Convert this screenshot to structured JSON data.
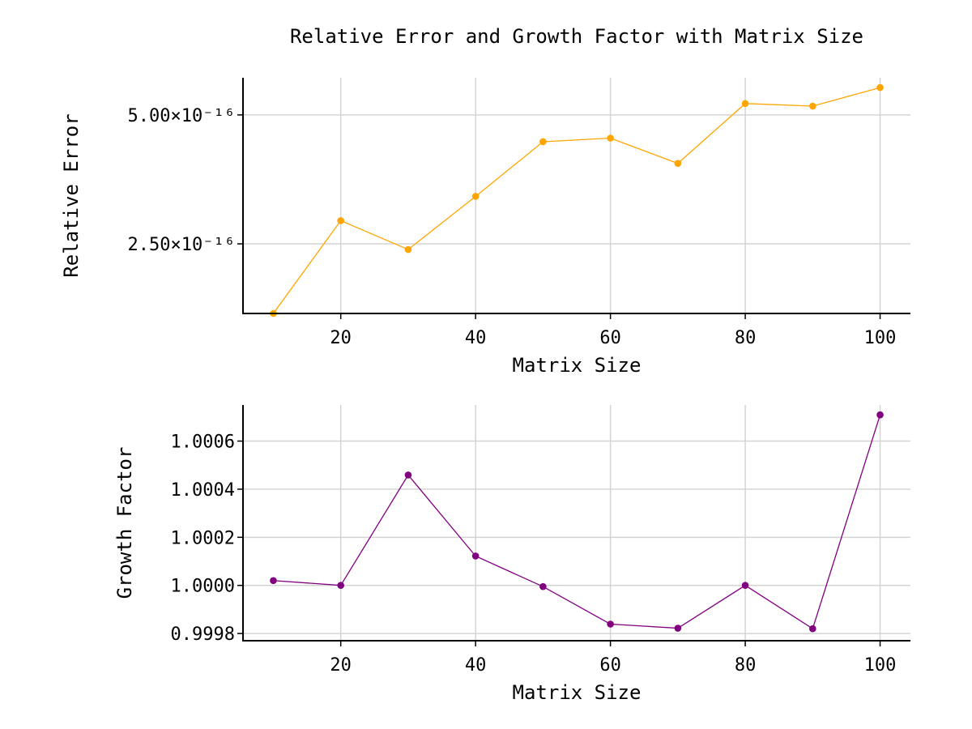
{
  "figure": {
    "title": "Relative Error and Growth Factor with Matrix Size"
  },
  "chart_data": [
    {
      "type": "line",
      "xlabel": "Matrix Size",
      "ylabel": "Relative Error",
      "x": [
        10,
        20,
        30,
        40,
        50,
        60,
        70,
        80,
        90,
        100
      ],
      "series": [
        {
          "values": [
            1.15e-16,
            2.95e-16,
            2.39e-16,
            3.42e-16,
            4.48e-16,
            4.55e-16,
            4.06e-16,
            5.22e-16,
            5.17e-16,
            5.53e-16
          ],
          "color": "#FFA500"
        }
      ],
      "xlim": [
        5.5,
        104.5
      ],
      "ylim": [
        1.15e-16,
        5.72e-16
      ],
      "xticks": [
        20,
        40,
        60,
        80,
        100
      ],
      "xtick_labels": [
        "20",
        "40",
        "60",
        "80",
        "100"
      ],
      "yticks": [
        2.5e-16,
        5e-16
      ],
      "ytick_labels": [
        "2.50×10⁻¹⁶",
        "5.00×10⁻¹⁶"
      ],
      "grid": true
    },
    {
      "type": "line",
      "xlabel": "Matrix Size",
      "ylabel": "Growth Factor",
      "x": [
        10,
        20,
        30,
        40,
        50,
        60,
        70,
        80,
        90,
        100
      ],
      "series": [
        {
          "values": [
            1.00002,
            1.0,
            1.000459,
            1.000122,
            0.999995,
            0.999839,
            0.999822,
            1.0,
            0.99982,
            1.000709
          ],
          "color": "#800080"
        }
      ],
      "xlim": [
        5.5,
        104.5
      ],
      "ylim": [
        0.99977,
        1.00075
      ],
      "xticks": [
        20,
        40,
        60,
        80,
        100
      ],
      "xtick_labels": [
        "20",
        "40",
        "60",
        "80",
        "100"
      ],
      "yticks": [
        0.9998,
        1.0,
        1.0002,
        1.0004,
        1.0006
      ],
      "ytick_labels": [
        "0.9998",
        "1.0000",
        "1.0002",
        "1.0004",
        "1.0006"
      ],
      "grid": true
    }
  ]
}
